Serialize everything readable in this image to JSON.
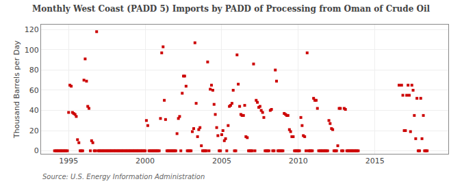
{
  "chart_data": {
    "type": "scatter",
    "title": "Monthly West Coast (PADD 5) Imports by PADD of Processing from Oman of Crude Oil",
    "ylabel": "Thousand Barrels per Day",
    "annotations": [
      "Source: U.S. Energy Information Administration"
    ],
    "color": "#cc0000",
    "marker": "square",
    "grid": true,
    "xlim": [
      1993.2,
      2019.8
    ],
    "ylim": [
      -3,
      125
    ],
    "xticks": [
      1995,
      2000,
      2005,
      2010,
      2015
    ],
    "yticks": [
      0,
      20,
      40,
      60,
      80,
      100,
      120
    ],
    "x": [
      1994.08,
      1994.17,
      1994.25,
      1994.33,
      1994.42,
      1994.5,
      1994.58,
      1994.67,
      1994.75,
      1994.83,
      1994.92,
      1995.0,
      1995.08,
      1995.17,
      1995.25,
      1995.33,
      1995.42,
      1995.5,
      1995.58,
      1995.67,
      1995.75,
      1995.83,
      1995.92,
      1996.0,
      1996.08,
      1996.17,
      1996.25,
      1996.33,
      1996.42,
      1996.5,
      1996.58,
      1996.67,
      1996.75,
      1996.83,
      1996.92,
      1997.0,
      1997.08,
      1997.17,
      1997.25,
      1997.33,
      1997.42,
      1997.5,
      1997.58,
      1997.67,
      1997.75,
      1997.83,
      1997.92,
      1998.0,
      1998.08,
      1998.17,
      1998.25,
      1998.33,
      1998.42,
      1998.5,
      1998.58,
      1998.67,
      1998.75,
      1998.83,
      1998.92,
      1999.0,
      1999.08,
      1999.17,
      1999.25,
      1999.33,
      1999.42,
      1999.5,
      1999.58,
      1999.67,
      1999.75,
      1999.83,
      1999.92,
      2000.0,
      2000.08,
      2000.17,
      2000.25,
      2000.33,
      2000.42,
      2000.5,
      2000.58,
      2000.67,
      2000.75,
      2000.83,
      2000.92,
      2001.0,
      2001.08,
      2001.17,
      2001.25,
      2001.33,
      2001.42,
      2001.5,
      2001.58,
      2001.67,
      2001.75,
      2001.83,
      2001.92,
      2002.0,
      2002.08,
      2002.17,
      2002.25,
      2002.33,
      2002.42,
      2002.5,
      2002.58,
      2002.67,
      2002.75,
      2002.83,
      2002.92,
      2003.0,
      2003.08,
      2003.17,
      2003.25,
      2003.33,
      2003.42,
      2003.5,
      2003.58,
      2003.67,
      2003.75,
      2003.83,
      2003.92,
      2004.0,
      2004.08,
      2004.17,
      2004.25,
      2004.33,
      2004.42,
      2004.5,
      2004.58,
      2004.67,
      2004.75,
      2004.83,
      2004.92,
      2005.0,
      2005.08,
      2005.17,
      2005.25,
      2005.33,
      2005.42,
      2005.5,
      2005.58,
      2005.67,
      2005.75,
      2005.83,
      2005.92,
      2006.0,
      2006.08,
      2006.17,
      2006.25,
      2006.33,
      2006.42,
      2006.5,
      2006.58,
      2006.67,
      2006.75,
      2006.83,
      2006.92,
      2007.0,
      2007.08,
      2007.17,
      2007.25,
      2007.33,
      2007.42,
      2007.5,
      2007.58,
      2007.67,
      2007.75,
      2007.83,
      2007.92,
      2008.0,
      2008.08,
      2008.17,
      2008.25,
      2008.33,
      2008.42,
      2008.5,
      2008.58,
      2008.67,
      2008.75,
      2008.83,
      2008.92,
      2009.0,
      2009.08,
      2009.17,
      2009.25,
      2009.33,
      2009.42,
      2009.5,
      2009.58,
      2009.67,
      2009.75,
      2009.83,
      2009.92,
      2010.0,
      2010.08,
      2010.17,
      2010.25,
      2010.33,
      2010.42,
      2010.5,
      2010.58,
      2010.67,
      2010.75,
      2010.83,
      2010.92,
      2011.0,
      2011.08,
      2011.17,
      2011.25,
      2011.33,
      2011.42,
      2011.5,
      2011.58,
      2011.67,
      2011.75,
      2011.83,
      2011.92,
      2012.0,
      2012.08,
      2012.17,
      2012.25,
      2012.33,
      2012.42,
      2012.5,
      2012.58,
      2012.67,
      2012.75,
      2012.83,
      2012.92,
      2013.0,
      2013.08,
      2013.17,
      2013.25,
      2013.33,
      2013.42,
      2013.5,
      2013.58,
      2013.67,
      2013.75,
      2013.83,
      2013.92,
      2016.58,
      2016.75,
      2016.83,
      2016.92,
      2017.0,
      2017.08,
      2017.17,
      2017.25,
      2017.33,
      2017.42,
      2017.5,
      2017.58,
      2017.67,
      2017.75,
      2017.83,
      2017.92,
      2018.0,
      2018.08,
      2018.17,
      2018.25,
      2018.33,
      2018.42
    ],
    "values": [
      0,
      0,
      0,
      0,
      0,
      0,
      0,
      0,
      0,
      0,
      0,
      38,
      65,
      64,
      38,
      37,
      36,
      34,
      11,
      8,
      0,
      0,
      0,
      70,
      91,
      69,
      44,
      42,
      0,
      10,
      8,
      0,
      0,
      118,
      0,
      0,
      0,
      0,
      0,
      0,
      0,
      0,
      0,
      0,
      0,
      0,
      0,
      0,
      0,
      0,
      0,
      0,
      0,
      0,
      0,
      0,
      0,
      0,
      0,
      0,
      0,
      0,
      0,
      0,
      0,
      0,
      0,
      0,
      0,
      0,
      0,
      0,
      30,
      25,
      0,
      0,
      0,
      0,
      0,
      0,
      0,
      0,
      0,
      32,
      97,
      103,
      50,
      31,
      0,
      0,
      0,
      0,
      0,
      0,
      0,
      0,
      17,
      32,
      34,
      0,
      57,
      74,
      74,
      64,
      0,
      0,
      0,
      0,
      19,
      22,
      107,
      47,
      14,
      21,
      23,
      5,
      0,
      0,
      0,
      0,
      88,
      0,
      61,
      65,
      60,
      46,
      36,
      23,
      15,
      0,
      0,
      16,
      20,
      10,
      12,
      0,
      25,
      44,
      45,
      47,
      60,
      0,
      0,
      95,
      66,
      44,
      36,
      35,
      35,
      45,
      14,
      13,
      0,
      0,
      0,
      0,
      86,
      0,
      50,
      48,
      43,
      44,
      40,
      38,
      33,
      0,
      0,
      0,
      0,
      40,
      41,
      0,
      0,
      80,
      69,
      0,
      0,
      0,
      0,
      0,
      37,
      36,
      35,
      35,
      21,
      19,
      14,
      14,
      0,
      0,
      0,
      0,
      0,
      33,
      25,
      15,
      14,
      0,
      97,
      0,
      0,
      0,
      0,
      52,
      50,
      50,
      42,
      0,
      0,
      0,
      0,
      0,
      0,
      0,
      0,
      30,
      27,
      22,
      21,
      0,
      0,
      0,
      5,
      42,
      42,
      0,
      0,
      42,
      41,
      0,
      0,
      0,
      0,
      0,
      0,
      0,
      0,
      0,
      0,
      65,
      65,
      55,
      20,
      20,
      55,
      65,
      55,
      19,
      65,
      60,
      35,
      12,
      52,
      0,
      0,
      52,
      12,
      35,
      0,
      0,
      0
    ]
  }
}
